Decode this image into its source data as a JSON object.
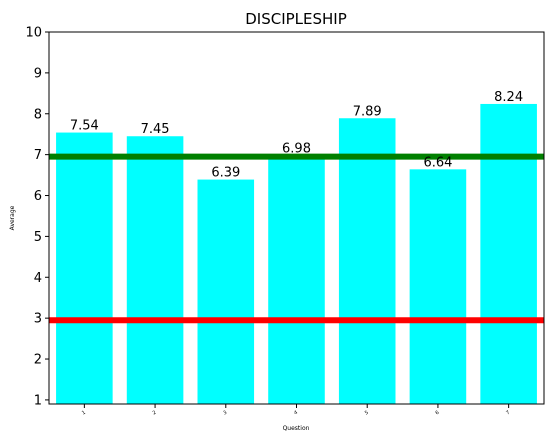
{
  "chart_data": {
    "type": "bar",
    "title": "DISCIPLESHIP",
    "xlabel": "Question",
    "ylabel": "Average",
    "categories": [
      "1",
      "2",
      "3",
      "4",
      "5",
      "6",
      "7"
    ],
    "values": [
      7.54,
      7.45,
      6.39,
      6.98,
      7.89,
      6.64,
      8.24
    ],
    "value_labels": [
      "7.54",
      "7.45",
      "6.39",
      "6.98",
      "7.89",
      "6.64",
      "8.24"
    ],
    "ylim": [
      0.9,
      10
    ],
    "yticks": [
      1,
      2,
      3,
      4,
      5,
      6,
      7,
      8,
      9,
      10
    ],
    "ytick_labels": [
      "1",
      "2",
      "3",
      "4",
      "5",
      "6",
      "7",
      "8",
      "9",
      "10"
    ],
    "bar_color": "#00ffff",
    "reference_lines": [
      {
        "y": 6.95,
        "color": "#008000"
      },
      {
        "y": 2.95,
        "color": "#ff0000"
      }
    ],
    "grid": false,
    "legend": "none"
  }
}
